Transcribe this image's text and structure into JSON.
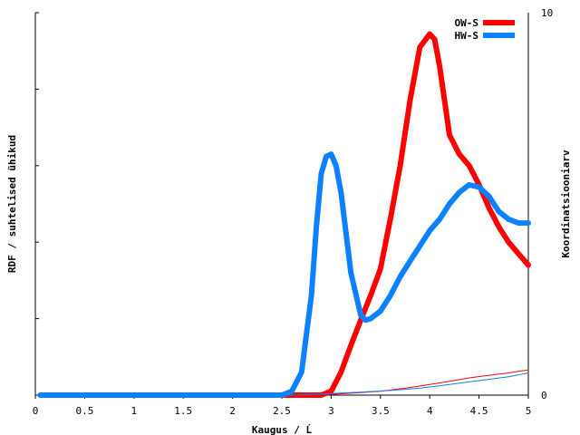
{
  "chart_data": {
    "type": "line",
    "xlabel": "Kaugus / Ĺ",
    "ylabel": "RDF / suhtelised ühikud",
    "y2label": "Koordinatsiooniarv",
    "xlim": [
      0,
      5
    ],
    "ylim_left": [
      0,
      5
    ],
    "ylim_right": [
      0,
      10
    ],
    "x_ticks": [
      "0",
      "0.5",
      "1",
      "1.5",
      "2",
      "2.5",
      "3",
      "3.5",
      "4",
      "4.5",
      "5"
    ],
    "y2_ticks": [
      "0",
      "10"
    ],
    "legend_position": "top-right",
    "grid": false,
    "series": [
      {
        "name": "OW-S",
        "color": "#ff0000",
        "axis": "left",
        "style": "thick",
        "x": [
          0.05,
          2.6,
          2.8,
          2.9,
          3.0,
          3.1,
          3.2,
          3.3,
          3.4,
          3.5,
          3.6,
          3.7,
          3.8,
          3.9,
          4.0,
          4.05,
          4.1,
          4.2,
          4.3,
          4.4,
          4.5,
          4.6,
          4.7,
          4.8,
          4.9,
          5.0
        ],
        "values": [
          0,
          0,
          0,
          0,
          0.05,
          0.3,
          0.65,
          0.98,
          1.3,
          1.65,
          2.3,
          3.0,
          3.85,
          4.55,
          4.72,
          4.65,
          4.3,
          3.4,
          3.15,
          3.0,
          2.75,
          2.45,
          2.2,
          2.0,
          1.85,
          1.7
        ]
      },
      {
        "name": "HW-S",
        "color": "#0a82ff",
        "axis": "left",
        "style": "thick",
        "x": [
          0.05,
          2.4,
          2.5,
          2.6,
          2.7,
          2.8,
          2.85,
          2.9,
          2.95,
          3.0,
          3.05,
          3.1,
          3.2,
          3.3,
          3.35,
          3.4,
          3.5,
          3.6,
          3.7,
          3.8,
          3.9,
          4.0,
          4.1,
          4.2,
          4.3,
          4.4,
          4.5,
          4.6,
          4.7,
          4.8,
          4.9,
          5.0
        ],
        "values": [
          0,
          0,
          0,
          0.05,
          0.3,
          1.3,
          2.2,
          2.9,
          3.12,
          3.15,
          3.0,
          2.65,
          1.6,
          1.05,
          0.98,
          1.0,
          1.1,
          1.3,
          1.55,
          1.75,
          1.95,
          2.15,
          2.3,
          2.5,
          2.65,
          2.75,
          2.72,
          2.6,
          2.4,
          2.3,
          2.25,
          2.25
        ]
      },
      {
        "name": "",
        "color": "#ff0000",
        "axis": "right",
        "style": "thin",
        "x": [
          0.05,
          2.8,
          3.0,
          3.5,
          3.8,
          4.0,
          4.2,
          4.4,
          4.6,
          4.8,
          5.0
        ],
        "values": [
          0,
          0,
          0.02,
          0.1,
          0.2,
          0.28,
          0.36,
          0.45,
          0.52,
          0.58,
          0.66
        ]
      },
      {
        "name": "",
        "color": "#0a82ff",
        "axis": "right",
        "style": "thin",
        "x": [
          0.05,
          2.6,
          3.0,
          3.3,
          3.6,
          3.9,
          4.2,
          4.5,
          4.8,
          5.0
        ],
        "values": [
          0,
          0,
          0.04,
          0.08,
          0.12,
          0.18,
          0.28,
          0.38,
          0.48,
          0.58
        ]
      }
    ]
  }
}
